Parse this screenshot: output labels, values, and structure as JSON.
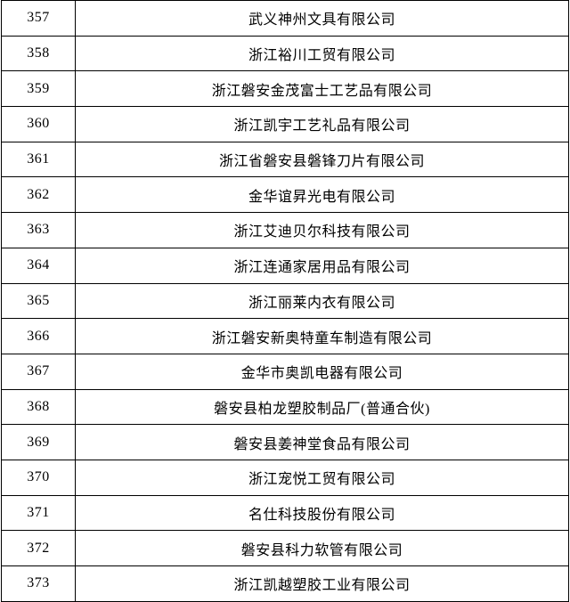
{
  "table": {
    "rows": [
      [
        "357",
        "武义神州文具有限公司"
      ],
      [
        "358",
        "浙江裕川工贸有限公司"
      ],
      [
        "359",
        "浙江磐安金茂富士工艺品有限公司"
      ],
      [
        "360",
        "浙江凯宇工艺礼品有限公司"
      ],
      [
        "361",
        "浙江省磐安县磐锋刀片有限公司"
      ],
      [
        "362",
        "金华谊昇光电有限公司"
      ],
      [
        "363",
        "浙江艾迪贝尔科技有限公司"
      ],
      [
        "364",
        "浙江连通家居用品有限公司"
      ],
      [
        "365",
        "浙江丽莱内衣有限公司"
      ],
      [
        "366",
        "浙江磐安新奥特童车制造有限公司"
      ],
      [
        "367",
        "金华市奥凯电器有限公司"
      ],
      [
        "368",
        "磐安县柏龙塑胶制品厂(普通合伙)"
      ],
      [
        "369",
        "磐安县姜神堂食品有限公司"
      ],
      [
        "370",
        "浙江宠悦工贸有限公司"
      ],
      [
        "371",
        "名仕科技股份有限公司"
      ],
      [
        "372",
        "磐安县科力软管有限公司"
      ],
      [
        "373",
        "浙江凯越塑胶工业有限公司"
      ]
    ]
  }
}
